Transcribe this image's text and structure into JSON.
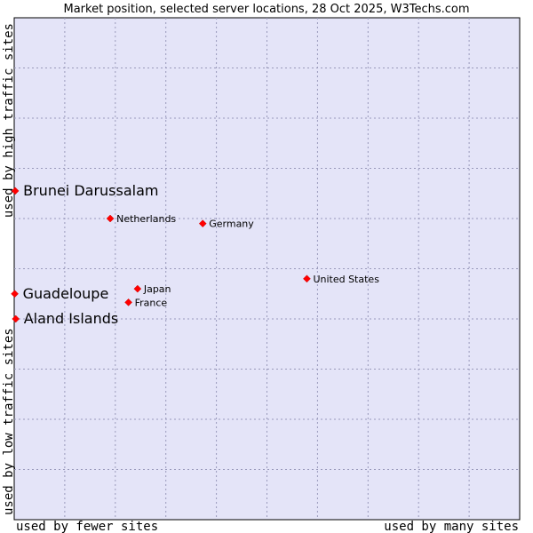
{
  "chart_data": {
    "type": "scatter",
    "title": "Market position, selected server locations, 28 Oct 2025, W3Techs.com",
    "xlabel_left": "used by fewer sites",
    "xlabel_right": "used by many sites",
    "ylabel_bottom": "used by low traffic sites",
    "ylabel_top": "used by high traffic sites",
    "xlim": [
      0,
      100
    ],
    "ylim": [
      0,
      100
    ],
    "grid": true,
    "points": [
      {
        "label": "Brunei Darussalam",
        "x": 0.2,
        "y": 65.5,
        "emphasis": true
      },
      {
        "label": "Guadeloupe",
        "x": 0.1,
        "y": 45.0,
        "emphasis": true
      },
      {
        "label": "Aland Islands",
        "x": 0.3,
        "y": 40.0,
        "emphasis": true
      },
      {
        "label": "Netherlands",
        "x": 19.0,
        "y": 60.0,
        "emphasis": false
      },
      {
        "label": "Germany",
        "x": 37.3,
        "y": 59.0,
        "emphasis": false
      },
      {
        "label": "United States",
        "x": 57.9,
        "y": 48.0,
        "emphasis": false
      },
      {
        "label": "Japan",
        "x": 24.4,
        "y": 46.0,
        "emphasis": false
      },
      {
        "label": "France",
        "x": 22.6,
        "y": 43.3,
        "emphasis": false
      }
    ]
  },
  "colors": {
    "plot_bg": "#e4e4f8",
    "grid": "#9999bb",
    "marker": "#ff0000",
    "text": "#000000"
  }
}
